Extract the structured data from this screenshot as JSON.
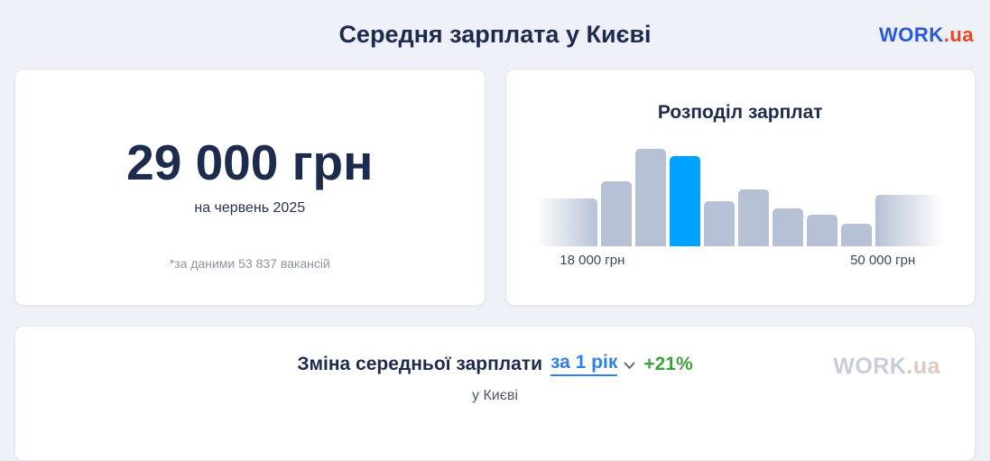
{
  "page": {
    "background": "#edf0f6"
  },
  "header": {
    "title": "Середня зарплата у Києві"
  },
  "logo": {
    "work": "WORK",
    "ua": ".ua",
    "work_color": "#2b59d8",
    "ua_color": "#ee4323"
  },
  "salary_card": {
    "amount": "29 000 грн",
    "period": "на червень 2025",
    "note": "*за даними 53 837 вакансій"
  },
  "chart_card": {
    "title": "Розподіл зарплат"
  },
  "chart_data": {
    "type": "bar",
    "title": "Розподіл зарплат",
    "values": [
      53,
      72,
      108,
      100,
      50,
      63,
      42,
      35,
      25,
      57
    ],
    "highlighted_index": 3,
    "highlighted_value_meaning": "29 000 грн (середня зарплата)",
    "x_tick_labels": [
      "18 000 грн",
      "50 000 грн"
    ],
    "bar_color": "#b7c1d6",
    "bar_color_transparent": "rgba(183,193,214,0)",
    "highlight_color": "#00a2ff",
    "fade_first_bar": "left",
    "fade_last_bar": "right",
    "legend": "off",
    "grid": "off"
  },
  "bottom_card": {
    "title_prefix": "Зміна середньої зарплати",
    "link_text": "за 1 рік",
    "change": "+21%",
    "change_color": "#3fa23f",
    "subtitle": "у Києві",
    "watermark_work": "WORK",
    "watermark_ua": ".ua",
    "watermark_work_color": "#c8ced9",
    "watermark_ua_color": "#ddcaba"
  }
}
